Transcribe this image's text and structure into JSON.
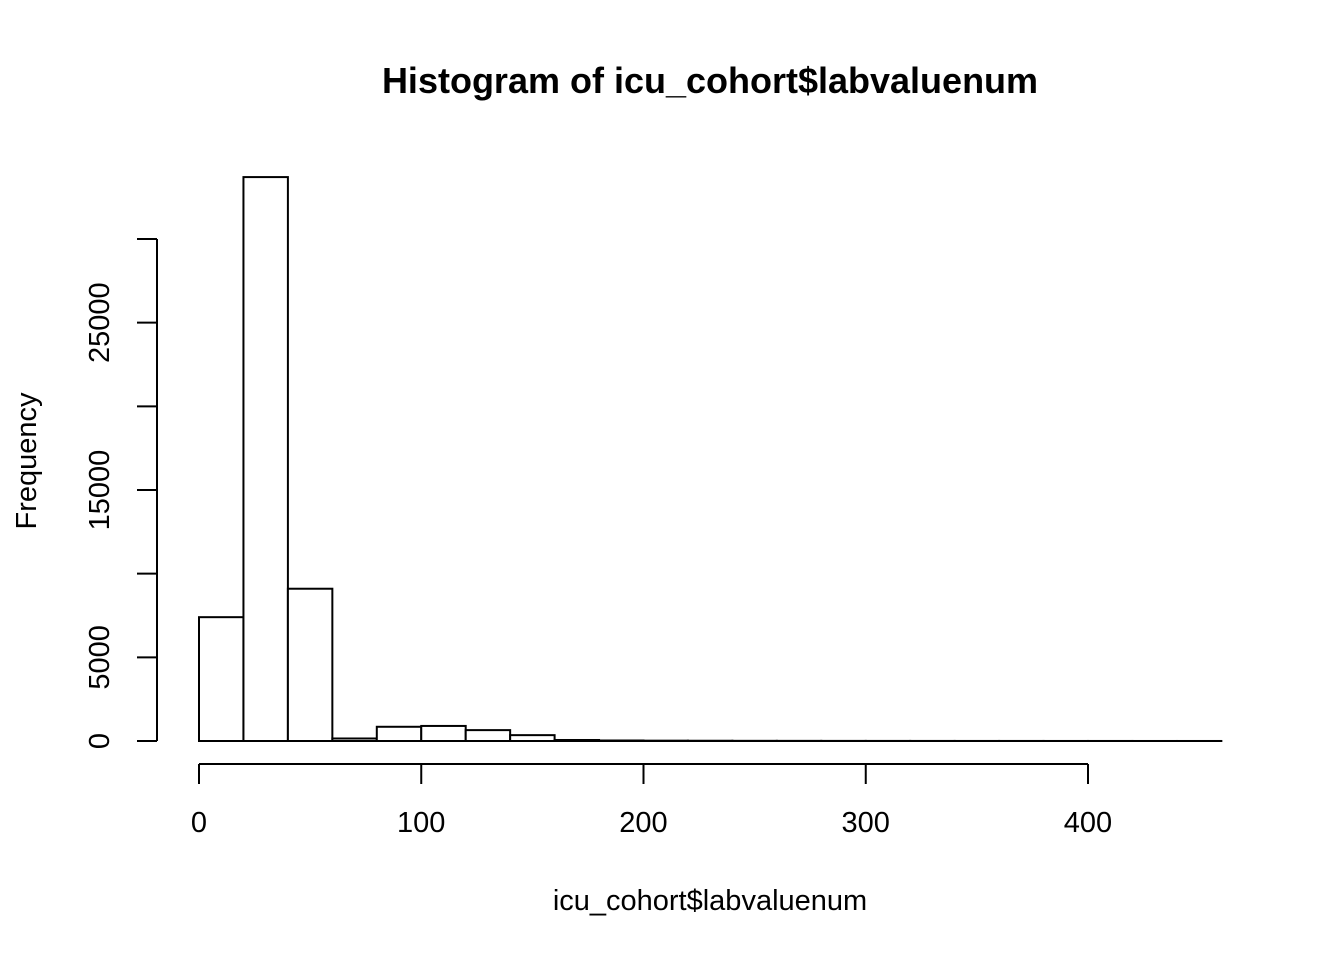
{
  "chart_data": {
    "type": "bar",
    "title": "Histogram of icu_cohort$labvaluenum",
    "xlabel": "icu_cohort$labvaluenum",
    "ylabel": "Frequency",
    "bin_edges": [
      0,
      20,
      40,
      60,
      80,
      100,
      120,
      140,
      160,
      180,
      200,
      220,
      240,
      260,
      280,
      300,
      320,
      340,
      360,
      380,
      400,
      420,
      440,
      460
    ],
    "values": [
      7400,
      33700,
      9100,
      150,
      850,
      900,
      650,
      350,
      60,
      30,
      20,
      15,
      10,
      8,
      6,
      5,
      4,
      3,
      3,
      2,
      2,
      1,
      1
    ],
    "xlim": [
      0,
      460
    ],
    "ylim": [
      0,
      35000
    ],
    "x_ticks": [
      0,
      100,
      200,
      300,
      400
    ],
    "x_tick_labels": [
      "0",
      "100",
      "200",
      "300",
      "400"
    ],
    "y_ticks": [
      0,
      5000,
      10000,
      15000,
      20000,
      25000,
      30000
    ],
    "y_tick_labels": [
      "0",
      "5000",
      "",
      "15000",
      "",
      "25000",
      ""
    ]
  }
}
